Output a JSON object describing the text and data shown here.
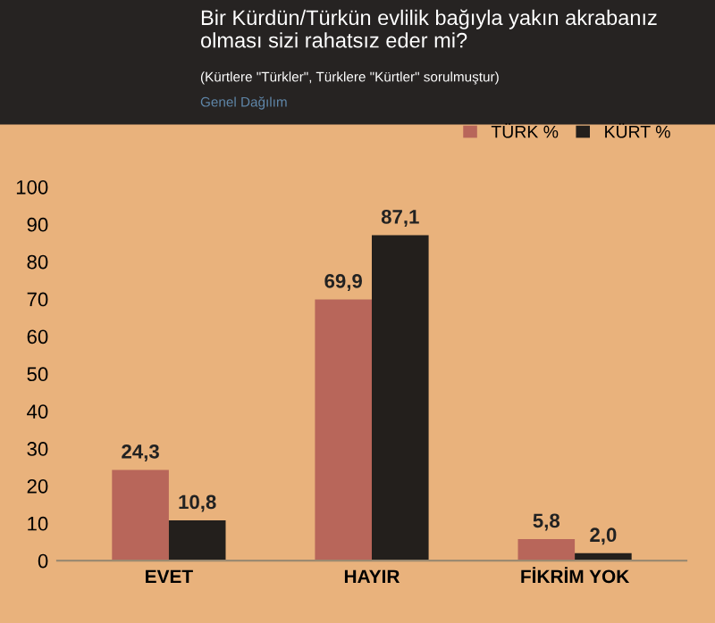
{
  "chart_data": {
    "type": "bar",
    "title": "Bir Kürdün/Türkün evlilik bağıyla yakın akrabanız olması sizi rahatsız eder mi?",
    "subtitle": "(Kürtlere \"Türkler\", Türklere \"Kürtler\" sorulmuştur)",
    "annotations": [
      "Genel Dağılım"
    ],
    "categories": [
      "EVET",
      "HAYIR",
      "FİKRİM YOK"
    ],
    "series": [
      {
        "name": "TÜRK %",
        "color": "#b8665a",
        "values": [
          24.3,
          69.9,
          5.8
        ],
        "value_labels": [
          "24,3",
          "69,9",
          "5,8"
        ]
      },
      {
        "name": "KÜRT %",
        "color": "#231f1c",
        "values": [
          10.8,
          87.1,
          2.0
        ],
        "value_labels": [
          "10,8",
          "87,1",
          "2,0"
        ]
      }
    ],
    "ylim": [
      0,
      100
    ],
    "yticks": [
      0,
      10,
      20,
      30,
      40,
      50,
      60,
      70,
      80,
      90,
      100
    ],
    "grid": false,
    "legend": "top right"
  }
}
